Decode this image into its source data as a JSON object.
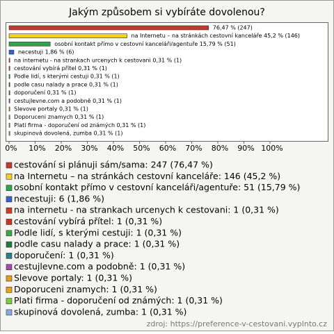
{
  "chart_data": {
    "type": "bar",
    "orientation": "horizontal",
    "title": "Jakým způsobem si vybíráte dovolenou?",
    "values": [
      76.47,
      45.2,
      15.79,
      1.86,
      0.31,
      0.31,
      0.31,
      0.31,
      0.31,
      0.31,
      0.31,
      0.31,
      0.31,
      0.31
    ],
    "value_labels": [
      "76,47 % (247)",
      "na Internetu – na stránkách cestovní kanceláře 45,2 % (146)",
      "osobní kontakt přímo v cestovní kanceláři/agentuře 15,79 % (51)",
      "necestuji 1,86 % (6)",
      "na internetu - na strankach urcenych k cestovani 0,31 % (1)",
      "cestování vybírá přítel 0,31 % (1)",
      "Podle lidí, s kterými cestuji 0,31 % (1)",
      "podle casu nalady a prace 0,31 % (1)",
      "doporučení 0,31 % (1)",
      "cestujlevne.com a podobně 0,31 % (1)",
      "Slevove portaly 0,31 % (1)",
      "Doporuceni znamych 0,31 % (1)",
      "Plati firma - doporučení od známých 0,31 % (1)",
      "skupinová dovolená, zumba 0,31 % (1)"
    ],
    "legend": [
      "cestování si plánuji sám/sama: 247 (76,47 %)",
      "na Internetu – na stránkách cestovní kanceláře: 146 (45,2 %)",
      "osobní kontakt přímo v cestovní kanceláři/agentuře: 51 (15,79 %)",
      "necestuji: 6 (1,86 %)",
      "na internetu - na strankach urcenych k cestovani: 1 (0,31 %)",
      "cestování vybírá přítel: 1 (0,31 %)",
      "Podle lidí, s kterými cestuji: 1 (0,31 %)",
      "podle casu nalady a prace: 1 (0,31 %)",
      "doporučení: 1 (0,31 %)",
      "cestujlevne.com a podobně: 1 (0,31 %)",
      "Slevove portaly: 1 (0,31 %)",
      "Doporuceni znamych: 1 (0,31 %)",
      "Plati firma - doporučení od známých: 1 (0,31 %)",
      "skupinová dovolená, zumba: 1 (0,31 %)"
    ],
    "colors": [
      "#c0392b",
      "#f1d21c",
      "#2ea44a",
      "#3b5fc4",
      "#d23a2a",
      "#cc3322",
      "#3aa84a",
      "#1f7a3a",
      "#2a7f8a",
      "#a34ab0",
      "#e89a1c",
      "#e8a020",
      "#7ccf3a",
      "#8aa8e0"
    ],
    "xlim": [
      0,
      100
    ],
    "xticks": [
      {
        "value": 0,
        "label": "0%"
      },
      {
        "value": 10,
        "label": "10%"
      },
      {
        "value": 20,
        "label": "20%"
      },
      {
        "value": 30,
        "label": "30%"
      },
      {
        "value": 40,
        "label": "40%"
      },
      {
        "value": 50,
        "label": "50%"
      },
      {
        "value": 60,
        "label": "60%"
      },
      {
        "value": 70,
        "label": "70%"
      },
      {
        "value": 80,
        "label": "80%"
      },
      {
        "value": 90,
        "label": "90%"
      },
      {
        "value": 100,
        "label": "100%"
      }
    ],
    "source": "zdroj: https://preference-v-cestovani.vyplnto.cz"
  }
}
